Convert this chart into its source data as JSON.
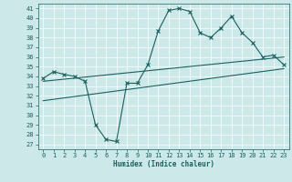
{
  "xlabel": "Humidex (Indice chaleur)",
  "bg_color": "#cce8e8",
  "line_color": "#1a6060",
  "grid_color": "#ffffff",
  "xlim": [
    -0.5,
    23.5
  ],
  "ylim": [
    26.5,
    41.5
  ],
  "yticks": [
    27,
    28,
    29,
    30,
    31,
    32,
    33,
    34,
    35,
    36,
    37,
    38,
    39,
    40,
    41
  ],
  "xticks": [
    0,
    1,
    2,
    3,
    4,
    5,
    6,
    7,
    8,
    9,
    10,
    11,
    12,
    13,
    14,
    15,
    16,
    17,
    18,
    19,
    20,
    21,
    22,
    23
  ],
  "series1_x": [
    0,
    1,
    2,
    3,
    4,
    5,
    6,
    7,
    8,
    9,
    10,
    11,
    12,
    13,
    14,
    15,
    16,
    17,
    18,
    19,
    20,
    21,
    22,
    23
  ],
  "series1_y": [
    33.8,
    34.5,
    34.2,
    34.0,
    33.5,
    29.0,
    27.5,
    27.3,
    33.3,
    33.3,
    35.2,
    38.7,
    40.8,
    41.0,
    40.7,
    38.5,
    38.0,
    39.0,
    40.2,
    38.5,
    37.5,
    36.0,
    36.2,
    35.2
  ],
  "series2_x": [
    0,
    23
  ],
  "series2_y": [
    33.5,
    36.0
  ],
  "series3_x": [
    0,
    23
  ],
  "series3_y": [
    31.5,
    34.8
  ]
}
